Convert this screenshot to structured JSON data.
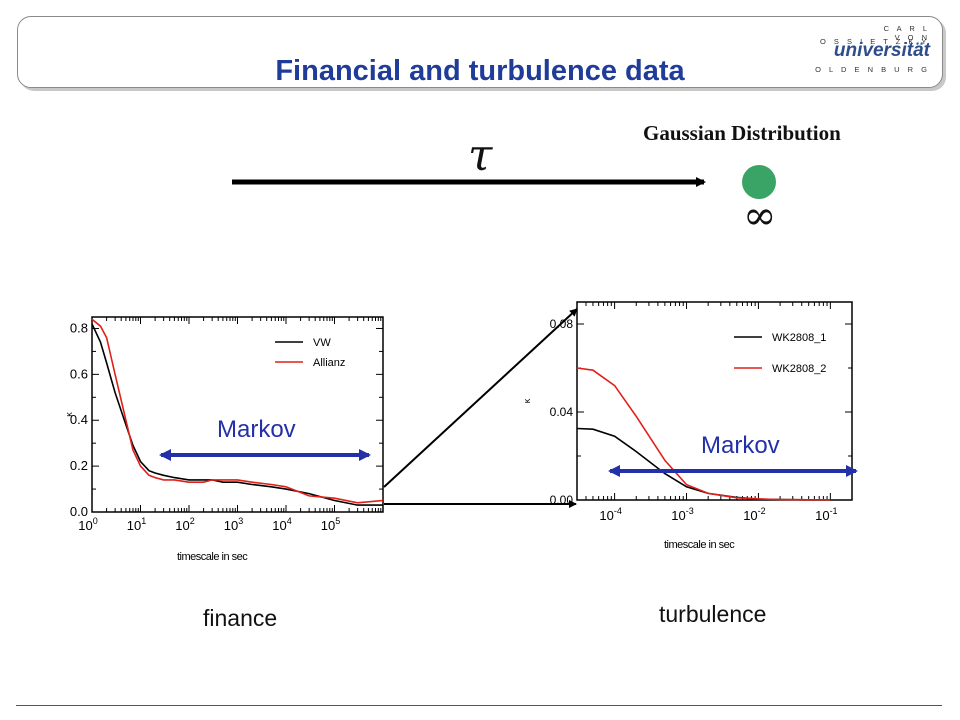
{
  "slide_title": "Financial and turbulence data",
  "logo": {
    "line_carl": "C A R L",
    "line_von": "V O N",
    "line_ossietzky": "O S S I E T Z K Y",
    "line_univ": "universität",
    "line_oldenburg": "O L D E N B U R G"
  },
  "diagram": {
    "tau_symbol": "τ",
    "gaussian_label": "Gaussian Distribution",
    "infinity_symbol": "∞",
    "dot_color": "#3aa366"
  },
  "finance_panel": {
    "caption": "finance",
    "markov_label": "Markov",
    "x_axis_title": "timescale in sec",
    "y_axis_label": "κ",
    "y_tick_labels": [
      "0.0",
      "0.2",
      "0.4",
      "0.6",
      "0.8"
    ],
    "x_tick_labels": [
      {
        "base": "10",
        "exp": "0"
      },
      {
        "base": "10",
        "exp": "1"
      },
      {
        "base": "10",
        "exp": "2"
      },
      {
        "base": "10",
        "exp": "3"
      },
      {
        "base": "10",
        "exp": "4"
      },
      {
        "base": "10",
        "exp": "5"
      }
    ],
    "legend": [
      {
        "name": "VW",
        "color": "#000000"
      },
      {
        "name": "Allianz",
        "color": "#e0201a"
      }
    ]
  },
  "turbulence_panel": {
    "caption": "turbulence",
    "markov_label": "Markov",
    "x_axis_title": "timescale in sec",
    "y_axis_label": "κ",
    "y_tick_labels": [
      "0.00",
      "0.04",
      "0.08"
    ],
    "x_tick_labels": [
      {
        "base": "10",
        "exp": "-4"
      },
      {
        "base": "10",
        "exp": "-3"
      },
      {
        "base": "10",
        "exp": "-2"
      },
      {
        "base": "10",
        "exp": "-1"
      }
    ],
    "legend": [
      {
        "name": "WK2808_1",
        "color": "#000000"
      },
      {
        "name": "WK2808_2",
        "color": "#e0201a"
      }
    ]
  },
  "chart_data": [
    {
      "type": "line",
      "title": "",
      "xlabel": "timescale in sec",
      "ylabel": "κ",
      "xscale": "log",
      "xlim": [
        1,
        1000000
      ],
      "ylim": [
        0,
        0.85
      ],
      "legend_position": "top-right",
      "series": [
        {
          "name": "VW",
          "color": "#000000",
          "x": [
            1,
            1.5,
            2,
            3,
            5,
            7,
            10,
            15,
            20,
            30,
            50,
            100,
            200,
            300,
            500,
            1000,
            2000,
            5000,
            10000,
            30000,
            100000,
            300000,
            1000000
          ],
          "y": [
            0.82,
            0.74,
            0.65,
            0.52,
            0.38,
            0.29,
            0.22,
            0.18,
            0.17,
            0.16,
            0.15,
            0.14,
            0.14,
            0.14,
            0.13,
            0.13,
            0.12,
            0.11,
            0.1,
            0.08,
            0.05,
            0.03,
            0.03
          ]
        },
        {
          "name": "Allianz",
          "color": "#e0201a",
          "x": [
            1,
            1.5,
            2,
            3,
            5,
            7,
            10,
            15,
            20,
            30,
            50,
            100,
            200,
            300,
            500,
            1000,
            2000,
            5000,
            10000,
            30000,
            100000,
            300000,
            1000000
          ],
          "y": [
            0.84,
            0.81,
            0.76,
            0.6,
            0.4,
            0.27,
            0.2,
            0.16,
            0.15,
            0.14,
            0.14,
            0.13,
            0.13,
            0.14,
            0.14,
            0.14,
            0.13,
            0.12,
            0.11,
            0.07,
            0.06,
            0.04,
            0.05
          ]
        }
      ]
    },
    {
      "type": "line",
      "title": "",
      "xlabel": "timescale in sec",
      "ylabel": "κ",
      "xscale": "log",
      "xlim": [
        3e-05,
        0.2
      ],
      "ylim": [
        0,
        0.09
      ],
      "legend_position": "top-right",
      "series": [
        {
          "name": "WK2808_1",
          "color": "#000000",
          "x": [
            3e-05,
            5e-05,
            0.0001,
            0.0002,
            0.0005,
            0.001,
            0.002,
            0.005,
            0.01,
            0.02,
            0.05,
            0.1
          ],
          "y": [
            0.0325,
            0.0322,
            0.029,
            0.022,
            0.012,
            0.006,
            0.003,
            0.0012,
            0.0004,
            0.0002,
            0.0001,
            0.0001
          ]
        },
        {
          "name": "WK2808_2",
          "color": "#e0201a",
          "x": [
            3e-05,
            5e-05,
            0.0001,
            0.0002,
            0.0005,
            0.001,
            0.002,
            0.005,
            0.01,
            0.02,
            0.05,
            0.1
          ],
          "y": [
            0.06,
            0.059,
            0.052,
            0.038,
            0.018,
            0.007,
            0.003,
            0.001,
            0.0005,
            0.0002,
            0.0001,
            0.0001
          ]
        }
      ]
    }
  ]
}
